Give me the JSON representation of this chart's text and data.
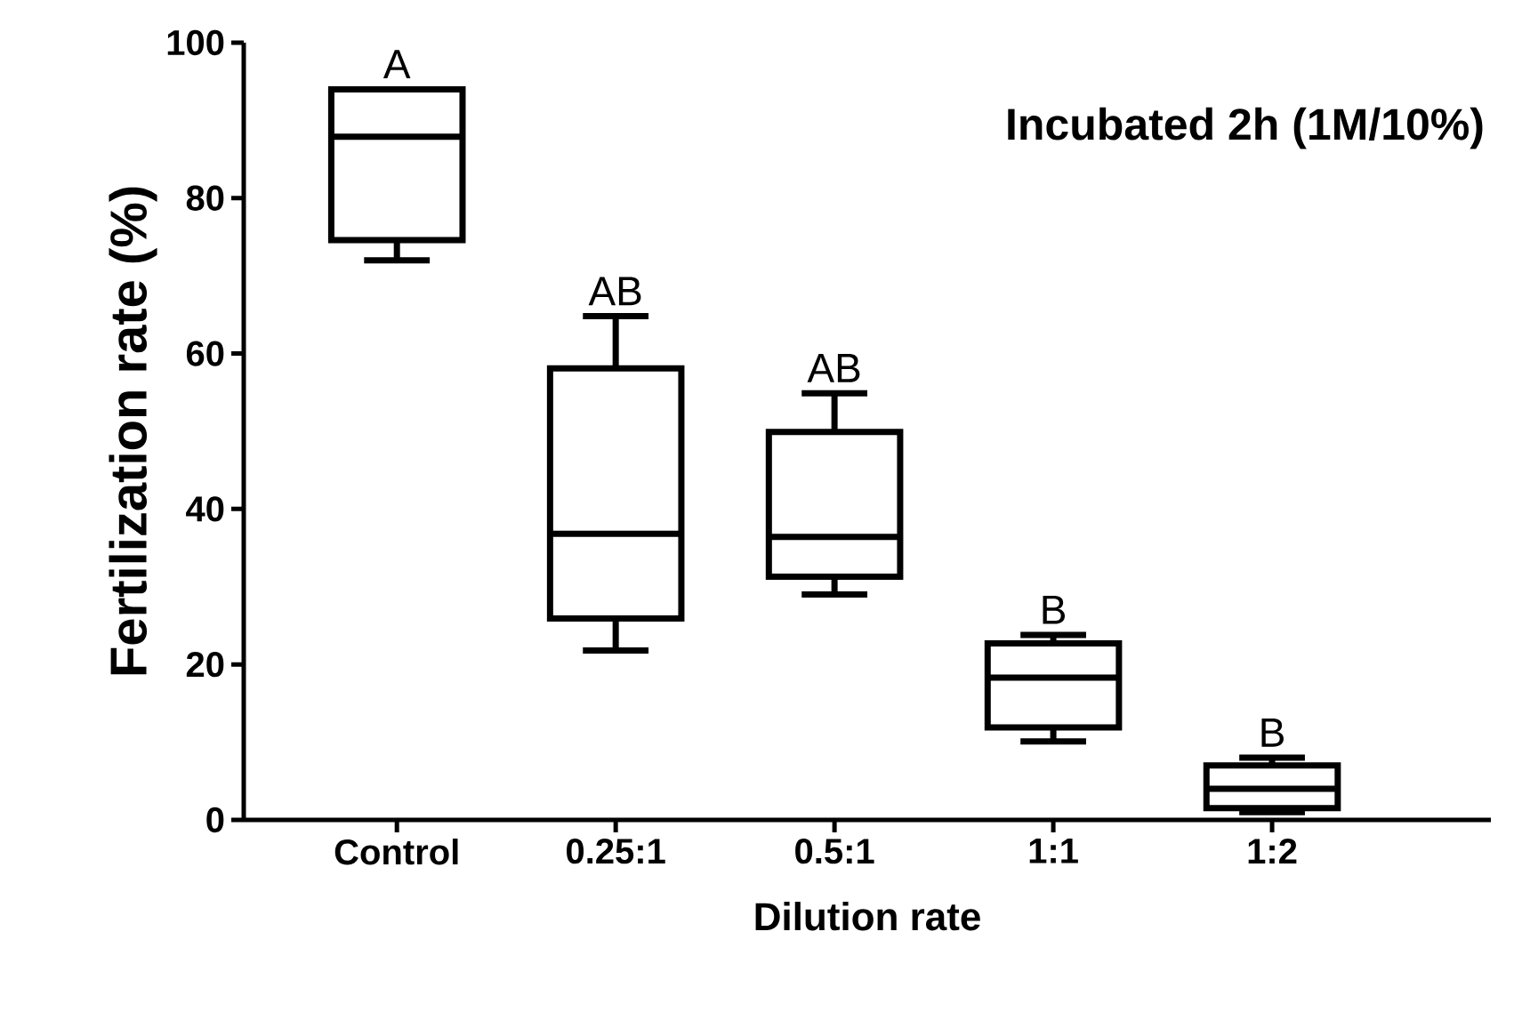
{
  "chart_data": {
    "type": "box",
    "title": "Incubated 2h (1M/10%)",
    "xlabel": "Dilution rate",
    "ylabel": "Fertilization rate (%)",
    "categories": [
      "Control",
      "0.25:1",
      "0.5:1",
      "1:1",
      "1:2"
    ],
    "boxes": [
      {
        "low": 72,
        "q1": 74.6,
        "median": 87.9,
        "q3": 94,
        "high": 94
      },
      {
        "low": 21.8,
        "q1": 25.9,
        "median": 36.8,
        "q3": 58.1,
        "high": 64.8
      },
      {
        "low": 29,
        "q1": 31.3,
        "median": 36.4,
        "q3": 49.9,
        "high": 54.9
      },
      {
        "low": 10.1,
        "q1": 11.9,
        "median": 18.3,
        "q3": 22.7,
        "high": 23.8
      },
      {
        "low": 1,
        "q1": 1.5,
        "median": 4,
        "q3": 7,
        "high": 8
      }
    ],
    "color": "#000000",
    "ylim": [
      0,
      100
    ],
    "yticks": [
      0,
      20,
      40,
      60,
      80,
      100
    ],
    "grid": false,
    "annotations": [
      "A",
      "AB",
      "AB",
      "B",
      "B"
    ]
  }
}
